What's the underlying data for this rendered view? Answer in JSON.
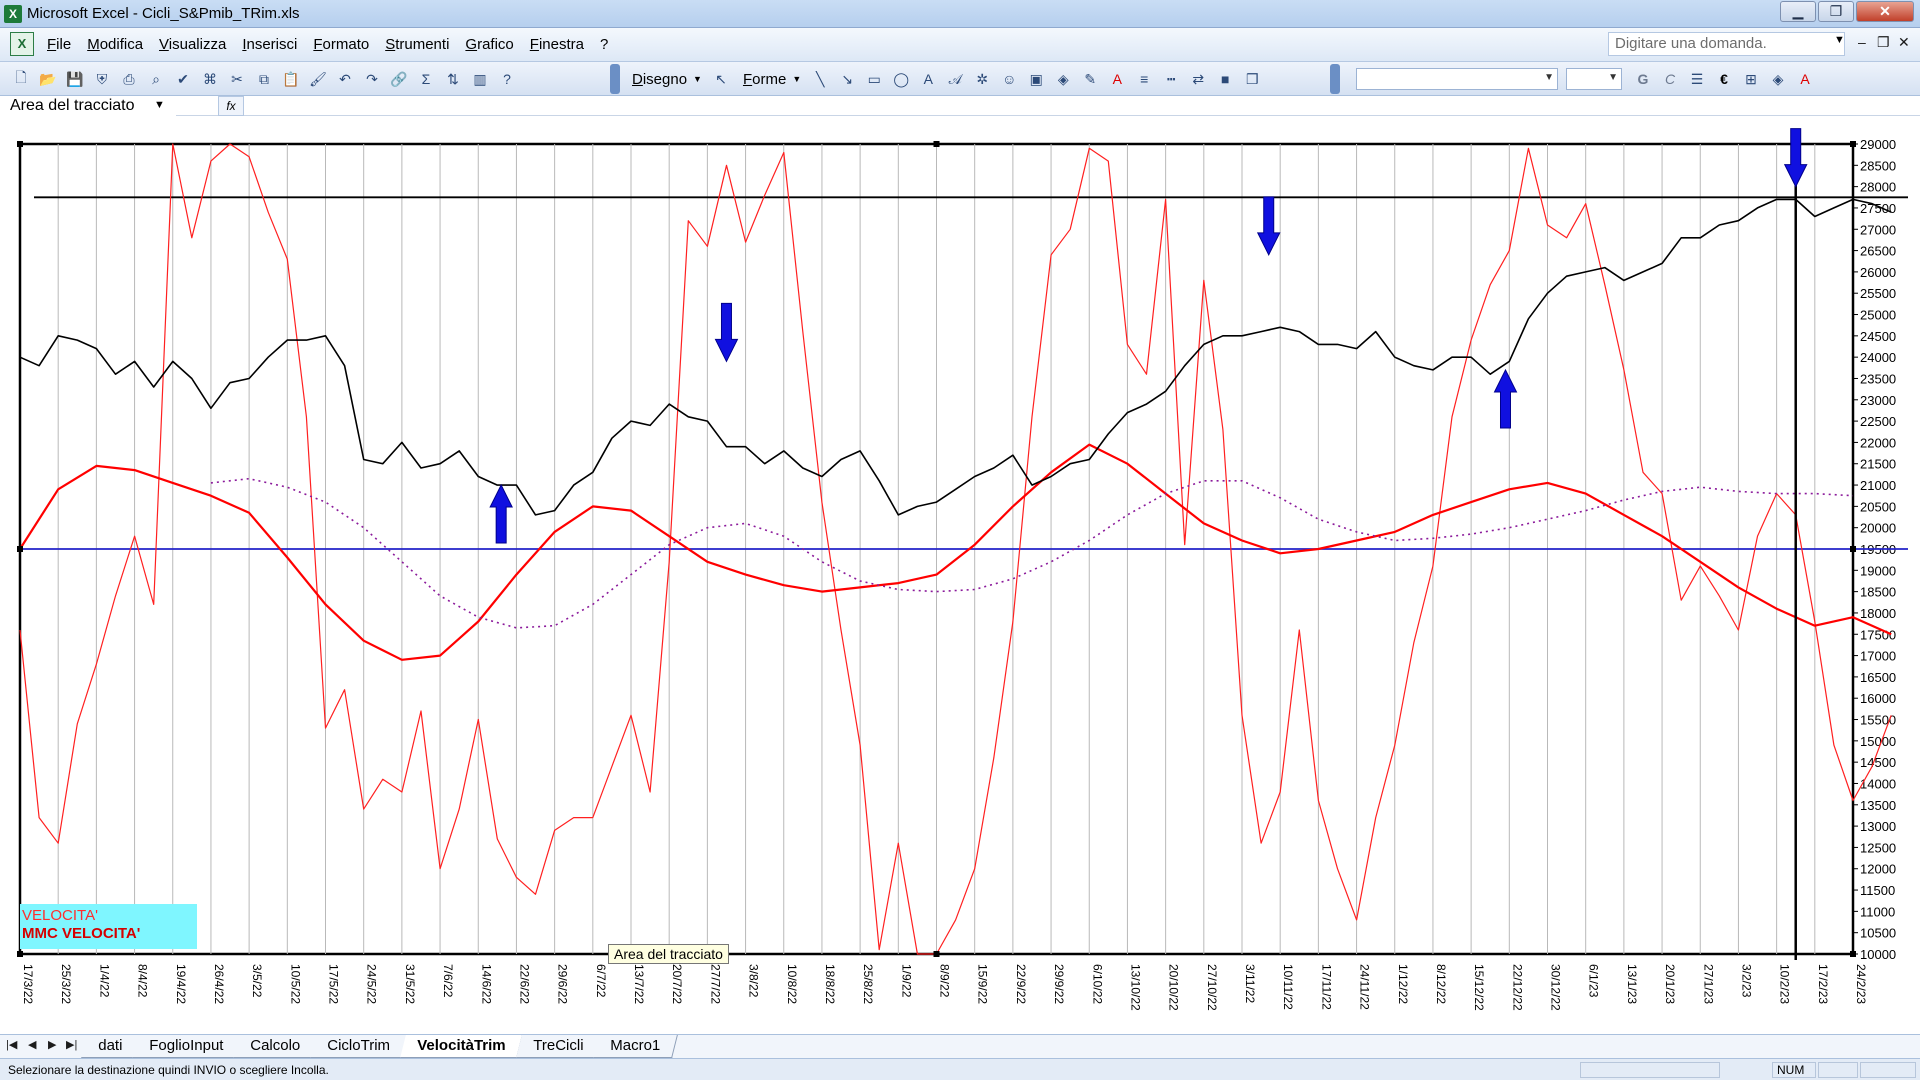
{
  "window": {
    "title": "Microsoft Excel - Cicli_S&Pmib_TRim.xls",
    "app_icon": "excel-icon",
    "controls": [
      "minimize-icon",
      "restore-icon",
      "close-icon"
    ]
  },
  "menu": {
    "items": [
      "File",
      "Modifica",
      "Visualizza",
      "Inserisci",
      "Formato",
      "Strumenti",
      "Grafico",
      "Finestra",
      "?"
    ],
    "help_placeholder": "Digitare una domanda."
  },
  "toolbar": {
    "draw_label": "Disegno",
    "shapes_label": "Forme",
    "bold_label": "G",
    "italic_label": "C",
    "euro_label": "€"
  },
  "name_box": {
    "value": "Area del tracciato",
    "fx_label": "fx"
  },
  "chart_data": {
    "type": "line",
    "x_tick_labels": [
      "17/3/22",
      "25/3/22",
      "1/4/22",
      "8/4/22",
      "19/4/22",
      "26/4/22",
      "3/5/22",
      "10/5/22",
      "17/5/22",
      "24/5/22",
      "31/5/22",
      "7/6/22",
      "14/6/22",
      "22/6/22",
      "29/6/22",
      "6/7/22",
      "13/7/22",
      "20/7/22",
      "27/7/22",
      "3/8/22",
      "10/8/22",
      "18/8/22",
      "25/8/22",
      "1/9/22",
      "8/9/22",
      "15/9/22",
      "22/9/22",
      "29/9/22",
      "6/10/22",
      "13/10/22",
      "20/10/22",
      "27/10/22",
      "3/11/22",
      "10/11/22",
      "17/11/22",
      "24/11/22",
      "1/12/22",
      "8/12/22",
      "15/12/22",
      "22/12/22",
      "30/12/22",
      "6/1/23",
      "13/1/23",
      "20/1/23",
      "27/1/23",
      "3/2/23",
      "10/2/23",
      "17/2/23",
      "24/2/23"
    ],
    "y_ticks": [
      10000,
      10500,
      11000,
      11500,
      12000,
      12500,
      13000,
      13500,
      14000,
      14500,
      15000,
      15500,
      16000,
      16500,
      17000,
      17500,
      18000,
      18500,
      19000,
      19500,
      20000,
      20500,
      21000,
      21500,
      22000,
      22500,
      23000,
      23500,
      24000,
      24500,
      25000,
      25500,
      26000,
      26500,
      27000,
      27500,
      28000,
      28500,
      29000
    ],
    "ylim": [
      10000,
      29000
    ],
    "grid": "vertical",
    "legend_entries": [
      "VELOCITA'",
      "MMC VELOCITA'"
    ],
    "plot_label": "Area del tracciato",
    "horizontal_lines": [
      {
        "value": 27750,
        "color": "#000000"
      },
      {
        "value": 19500,
        "color": "#2323c8"
      }
    ],
    "vertical_line": {
      "x_index": 46.5,
      "color": "#000000"
    },
    "series": [
      {
        "name": "VELOCITA'",
        "color": "#ff2020",
        "width": 1.2,
        "x": [
          0,
          0.5,
          1,
          1.5,
          2,
          2.5,
          3,
          3.5,
          4,
          4.5,
          5,
          5.5,
          6,
          6.5,
          7,
          7.5,
          8,
          8.5,
          9,
          9.5,
          10,
          10.5,
          11,
          11.5,
          12,
          12.5,
          13,
          13.5,
          14,
          14.5,
          15,
          15.5,
          16,
          16.5,
          17,
          17.5,
          18,
          18.5,
          19,
          19.5,
          20,
          20.5,
          21,
          21.5,
          22,
          22.5,
          23,
          23.5,
          24,
          24.5,
          25,
          25.5,
          26,
          26.5,
          27,
          27.5,
          28,
          28.5,
          29,
          29.5,
          30,
          30.5,
          31,
          31.5,
          32,
          32.5,
          33,
          33.5,
          34,
          34.5,
          35,
          35.5,
          36,
          36.5,
          37,
          37.5,
          38,
          38.5,
          39,
          39.5,
          40,
          40.5,
          41,
          41.5,
          42,
          42.5,
          43,
          43.5,
          44,
          44.5,
          45,
          45.5,
          46,
          46.5,
          47,
          47.5,
          48,
          48.5,
          49
        ],
        "values": [
          17600,
          13200,
          12600,
          15400,
          16800,
          18400,
          19800,
          18200,
          29000,
          26800,
          28600,
          29000,
          28700,
          27400,
          26300,
          22600,
          15300,
          16200,
          13400,
          14100,
          13800,
          15700,
          12000,
          13400,
          15500,
          12700,
          11800,
          11400,
          12900,
          13200,
          13200,
          14400,
          15600,
          13800,
          19200,
          27200,
          26600,
          28500,
          26700,
          27800,
          28800,
          24600,
          20600,
          17600,
          14900,
          10100,
          12600,
          10000,
          10000,
          10800,
          12000,
          14600,
          17800,
          22600,
          26400,
          27000,
          28900,
          28600,
          24300,
          23600,
          27700,
          19600,
          25800,
          22300,
          15600,
          12600,
          13800,
          17600,
          13600,
          12000,
          10800,
          13200,
          14900,
          17300,
          19100,
          22600,
          24400,
          25700,
          26500,
          28900,
          27100,
          26800,
          27600,
          25700,
          23700,
          21300,
          20800,
          18300,
          19100,
          18400,
          17600,
          19800,
          20800,
          20300,
          17800,
          14900,
          13600,
          14400,
          15600
        ]
      },
      {
        "name": "MMC VELOCITA'",
        "color": "#ff0000",
        "width": 2.2,
        "x": [
          0,
          1,
          2,
          3,
          4,
          5,
          6,
          7,
          8,
          9,
          10,
          11,
          12,
          13,
          14,
          15,
          16,
          17,
          18,
          19,
          20,
          21,
          22,
          23,
          24,
          25,
          26,
          27,
          28,
          29,
          30,
          31,
          32,
          33,
          34,
          35,
          36,
          37,
          38,
          39,
          40,
          41,
          42,
          43,
          44,
          45,
          46,
          47,
          48,
          49
        ],
        "values": [
          19500,
          20900,
          21450,
          21350,
          21050,
          20750,
          20350,
          19300,
          18200,
          17350,
          16900,
          17000,
          17800,
          18900,
          19900,
          20500,
          20400,
          19800,
          19200,
          18900,
          18650,
          18500,
          18600,
          18700,
          18900,
          19600,
          20500,
          21300,
          21950,
          21500,
          20800,
          20100,
          19700,
          19400,
          19500,
          19700,
          19900,
          20300,
          20600,
          20900,
          21050,
          20800,
          20300,
          19800,
          19200,
          18600,
          18100,
          17700,
          17900,
          17500
        ]
      },
      {
        "name": "",
        "color": "#8b1a9b",
        "width": 1.6,
        "dash": "2,4",
        "x": [
          5,
          6,
          7,
          8,
          9,
          10,
          11,
          12,
          13,
          14,
          15,
          16,
          17,
          18,
          19,
          20,
          21,
          22,
          23,
          24,
          25,
          26,
          27,
          28,
          29,
          30,
          31,
          32,
          33,
          34,
          35,
          36,
          37,
          38,
          39,
          40,
          41,
          42,
          43,
          44,
          45,
          46,
          47,
          48
        ],
        "values": [
          21050,
          21150,
          20950,
          20600,
          20000,
          19200,
          18400,
          17900,
          17650,
          17700,
          18200,
          18900,
          19600,
          20000,
          20100,
          19800,
          19200,
          18750,
          18550,
          18500,
          18550,
          18800,
          19200,
          19700,
          20300,
          20800,
          21100,
          21100,
          20700,
          20200,
          19900,
          19700,
          19750,
          19850,
          20000,
          20200,
          20400,
          20650,
          20850,
          20950,
          20850,
          20800,
          20800,
          20750
        ]
      },
      {
        "name": "",
        "color": "#000000",
        "width": 1.6,
        "x": [
          0,
          0.5,
          1,
          1.5,
          2,
          2.5,
          3,
          3.5,
          4,
          4.5,
          5,
          5.5,
          6,
          6.5,
          7,
          7.5,
          8,
          8.5,
          9,
          9.5,
          10,
          10.5,
          11,
          11.5,
          12,
          12.5,
          13,
          13.5,
          14,
          14.5,
          15,
          15.5,
          16,
          16.5,
          17,
          17.5,
          18,
          18.5,
          19,
          19.5,
          20,
          20.5,
          21,
          21.5,
          22,
          22.5,
          23,
          23.5,
          24,
          24.5,
          25,
          25.5,
          26,
          26.5,
          27,
          27.5,
          28,
          28.5,
          29,
          29.5,
          30,
          30.5,
          31,
          31.5,
          32,
          32.5,
          33,
          33.5,
          34,
          34.5,
          35,
          35.5,
          36,
          36.5,
          37,
          37.5,
          38,
          38.5,
          39,
          39.5,
          40,
          40.5,
          41,
          41.5,
          42,
          42.5,
          43,
          43.5,
          44,
          44.5,
          45,
          45.5,
          46,
          46.5,
          47,
          47.5,
          48,
          48.5,
          49
        ],
        "values": [
          24000,
          23800,
          24500,
          24400,
          24200,
          23600,
          23900,
          23300,
          23900,
          23500,
          22800,
          23400,
          23500,
          24000,
          24400,
          24400,
          24500,
          23800,
          21600,
          21500,
          22000,
          21400,
          21500,
          21800,
          21200,
          21000,
          21000,
          20300,
          20400,
          21000,
          21300,
          22100,
          22500,
          22400,
          22900,
          22600,
          22500,
          21900,
          21900,
          21500,
          21800,
          21400,
          21200,
          21600,
          21800,
          21100,
          20300,
          20500,
          20600,
          20900,
          21200,
          21400,
          21700,
          21000,
          21200,
          21500,
          21600,
          22200,
          22700,
          22900,
          23200,
          23800,
          24300,
          24500,
          24500,
          24600,
          24700,
          24600,
          24300,
          24300,
          24200,
          24600,
          24000,
          23800,
          23700,
          24000,
          24000,
          23600,
          23900,
          24900,
          25500,
          25900,
          26000,
          26100,
          25800,
          26000,
          26200,
          26800,
          26800,
          27100,
          27200,
          27500,
          27700,
          27700,
          27300,
          27500,
          27700,
          27600,
          27400
        ]
      }
    ],
    "arrows": [
      {
        "x_index": 12.6,
        "value": 21000,
        "direction": "up"
      },
      {
        "x_index": 18.5,
        "value": 23900,
        "direction": "down"
      },
      {
        "x_index": 32.7,
        "value": 26400,
        "direction": "down"
      },
      {
        "x_index": 38.9,
        "value": 23700,
        "direction": "up"
      },
      {
        "x_index": 46.5,
        "value": 28000,
        "direction": "down"
      }
    ]
  },
  "sheet_tabs": {
    "tabs": [
      "dati",
      "FoglioInput",
      "Calcolo",
      "CicloTrim",
      "VelocitàTrim",
      "TreCicli",
      "Macro1"
    ],
    "active": "VelocitàTrim"
  },
  "status": {
    "message": "Selezionare la destinazione quindi INVIO o scegliere Incolla.",
    "num": "NUM"
  }
}
